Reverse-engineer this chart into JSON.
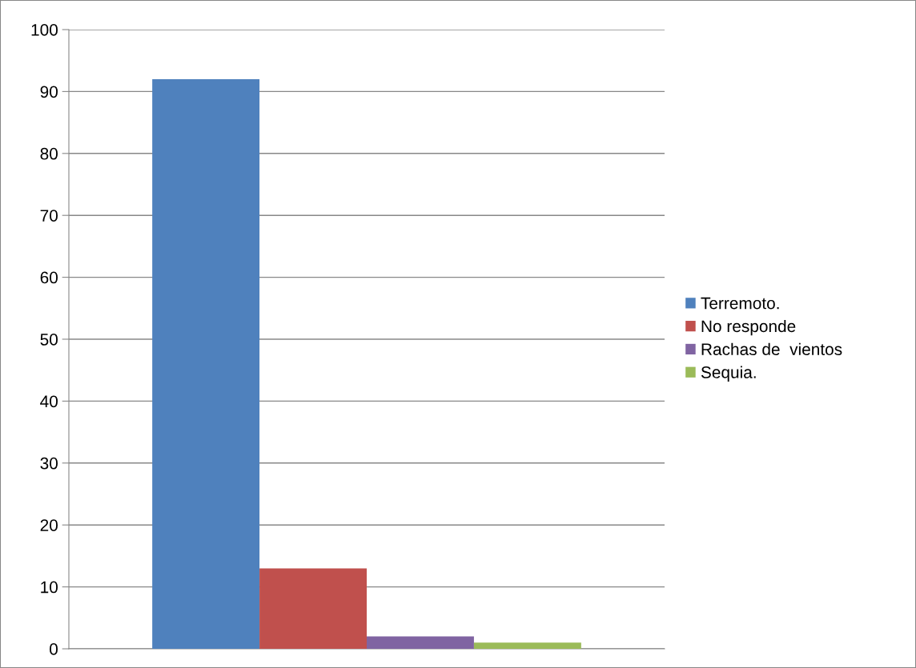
{
  "chart_data": {
    "type": "bar",
    "categories": [
      null
    ],
    "series": [
      {
        "name": "Terremoto.",
        "color": "#4f81bd",
        "values": [
          92
        ]
      },
      {
        "name": "No responde",
        "color": "#c0504d",
        "values": [
          13
        ]
      },
      {
        "name": "Rachas de  vientos",
        "color": "#8064a2",
        "values": [
          2
        ]
      },
      {
        "name": "Sequia.",
        "color": "#9bbb59",
        "values": [
          1
        ]
      }
    ],
    "ylim": [
      0,
      100
    ],
    "yticks": [
      0,
      10,
      20,
      30,
      40,
      50,
      60,
      70,
      80,
      90,
      100
    ],
    "grid": "y",
    "legend": "right"
  }
}
